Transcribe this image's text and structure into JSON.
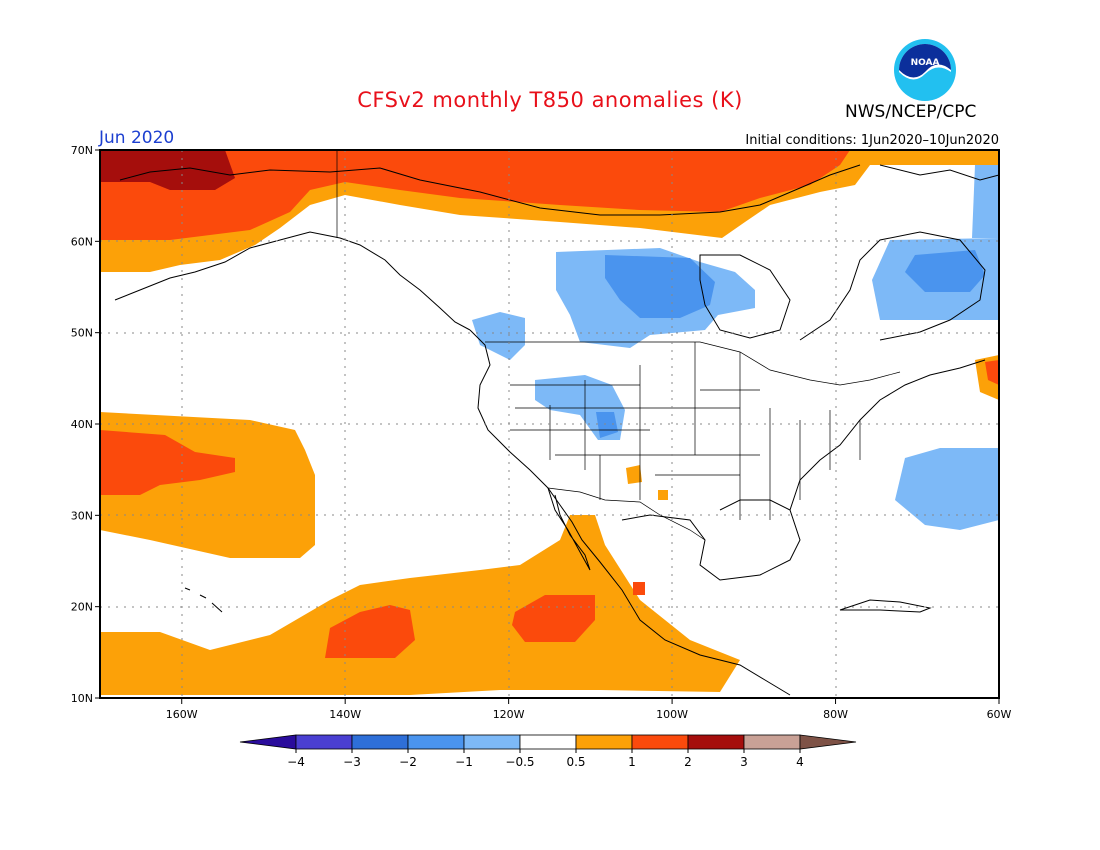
{
  "header": {
    "title": "CFSv2 monthly T850 anomalies (K)",
    "agency": "NWS/NCEP/CPC",
    "logo_text": "NOAA",
    "month": "Jun 2020",
    "initial_conditions": "Initial conditions: 1Jun2020–10Jun2020"
  },
  "map": {
    "lon_range": [
      -170,
      -60
    ],
    "lat_range": [
      10,
      70
    ],
    "lon_ticks": [
      {
        "value": -160,
        "label": "160W"
      },
      {
        "value": -140,
        "label": "140W"
      },
      {
        "value": -120,
        "label": "120W"
      },
      {
        "value": -100,
        "label": "100W"
      },
      {
        "value": -80,
        "label": "80W"
      },
      {
        "value": -60,
        "label": "60W"
      }
    ],
    "lat_ticks": [
      {
        "value": 70,
        "label": "70N"
      },
      {
        "value": 60,
        "label": "60N"
      },
      {
        "value": 50,
        "label": "50N"
      },
      {
        "value": 40,
        "label": "40N"
      },
      {
        "value": 30,
        "label": "30N"
      },
      {
        "value": 20,
        "label": "20N"
      },
      {
        "value": 10,
        "label": "10N"
      }
    ]
  },
  "colorbar": {
    "bins": [
      {
        "color": "#2a0c9c"
      },
      {
        "color": "#4a3fd2"
      },
      {
        "color": "#2e6fd8"
      },
      {
        "color": "#4a94ee"
      },
      {
        "color": "#7db9f7"
      },
      {
        "color": "#ffffff"
      },
      {
        "color": "#fca108"
      },
      {
        "color": "#fb4a0c"
      },
      {
        "color": "#a50e0c"
      },
      {
        "color": "#c9a196"
      },
      {
        "color": "#7e5246"
      }
    ],
    "labels": [
      "−4",
      "−3",
      "−2",
      "−1",
      "−0.5",
      "0.5",
      "1",
      "2",
      "3",
      "4"
    ]
  }
}
